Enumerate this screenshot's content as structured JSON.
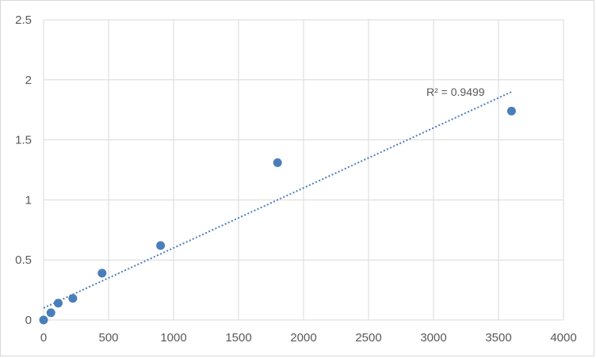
{
  "chart_data": {
    "type": "scatter",
    "title": "",
    "xlabel": "",
    "ylabel": "",
    "xlim": [
      0,
      4000
    ],
    "ylim": [
      0,
      2.5
    ],
    "x_ticks": [
      0,
      500,
      1000,
      1500,
      2000,
      2500,
      3000,
      3500,
      4000
    ],
    "y_ticks": [
      0,
      0.5,
      1,
      1.5,
      2,
      2.5
    ],
    "x_tick_labels": [
      "0",
      "500",
      "1000",
      "1500",
      "2000",
      "2500",
      "3000",
      "3500",
      "4000"
    ],
    "y_tick_labels": [
      "0",
      "0.5",
      "1",
      "1.5",
      "2",
      "2.5"
    ],
    "grid": true,
    "legend": "none",
    "series": [
      {
        "points": [
          {
            "x": 0,
            "y": 0.0
          },
          {
            "x": 56.25,
            "y": 0.06
          },
          {
            "x": 112.5,
            "y": 0.14
          },
          {
            "x": 225,
            "y": 0.18
          },
          {
            "x": 450,
            "y": 0.39
          },
          {
            "x": 900,
            "y": 0.62
          },
          {
            "x": 1800,
            "y": 1.31
          },
          {
            "x": 3600,
            "y": 1.74
          }
        ],
        "color": "#4a7ebb"
      }
    ],
    "trendline": {
      "type": "linear",
      "x_range": [
        0,
        3600
      ],
      "y_start": 0.1,
      "y_end": 1.9,
      "color": "#4a7ebb",
      "style": "dotted"
    },
    "annotations": [
      {
        "text": "R² = 0.9499"
      }
    ],
    "colors": {
      "grid": "#d9d9d9",
      "text": "#595959",
      "marker": "#4a7ebb"
    }
  }
}
